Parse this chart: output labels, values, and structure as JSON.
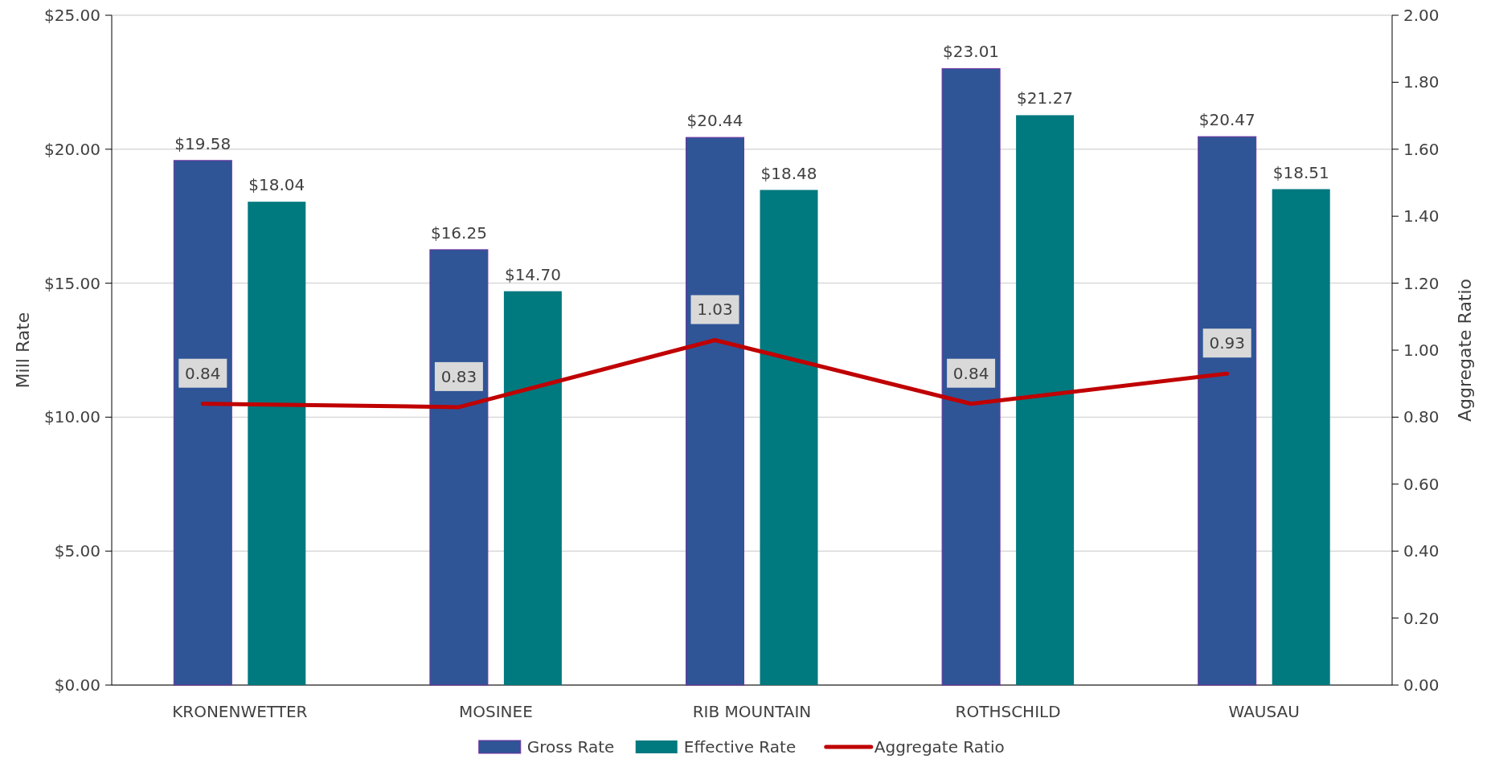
{
  "chart_data": {
    "type": "bar",
    "ylabel": "Mill Rate",
    "y2label": "Aggregate Ratio",
    "categories": [
      "KRONENWETTER",
      "MOSINEE",
      "RIB MOUNTAIN",
      "ROTHSCHILD",
      "WAUSAU"
    ],
    "series": [
      {
        "name": "Gross Rate",
        "color": "#2f5597",
        "values": [
          19.58,
          16.25,
          20.44,
          23.01,
          20.47
        ],
        "value_labels": [
          "$19.58",
          "$16.25",
          "$20.44",
          "$23.01",
          "$20.47"
        ]
      },
      {
        "name": "Effective Rate",
        "color": "#00797f",
        "values": [
          18.04,
          14.7,
          18.48,
          21.27,
          18.51
        ],
        "value_labels": [
          "$18.04",
          "$14.70",
          "$18.48",
          "$21.27",
          "$18.51"
        ]
      },
      {
        "name": "Aggregate Ratio",
        "type": "line",
        "axis": "y2",
        "color": "#c00000",
        "values": [
          0.84,
          0.83,
          1.03,
          0.84,
          0.93
        ],
        "value_labels": [
          "0.84",
          "0.83",
          "1.03",
          "0.84",
          "0.93"
        ]
      }
    ],
    "ylim": [
      0,
      25
    ],
    "yticks": [
      {
        "value": 0,
        "label": "$0.00"
      },
      {
        "value": 5,
        "label": "$5.00"
      },
      {
        "value": 10,
        "label": "$10.00"
      },
      {
        "value": 15,
        "label": "$15.00"
      },
      {
        "value": 20,
        "label": "$20.00"
      },
      {
        "value": 25,
        "label": "$25.00"
      }
    ],
    "y2lim": [
      0,
      2
    ],
    "y2ticks": [
      {
        "value": 0,
        "label": "0.00"
      },
      {
        "value": 0.2,
        "label": "0.20"
      },
      {
        "value": 0.4,
        "label": "0.40"
      },
      {
        "value": 0.6,
        "label": "0.60"
      },
      {
        "value": 0.8,
        "label": "0.80"
      },
      {
        "value": 1,
        "label": "1.00"
      },
      {
        "value": 1.2,
        "label": "1.20"
      },
      {
        "value": 1.4,
        "label": "1.40"
      },
      {
        "value": 1.6,
        "label": "1.60"
      },
      {
        "value": 1.8,
        "label": "1.80"
      },
      {
        "value": 2,
        "label": "2.00"
      }
    ],
    "grid": "y",
    "legend": "bottom",
    "marker": "none",
    "line_style": "solid"
  }
}
